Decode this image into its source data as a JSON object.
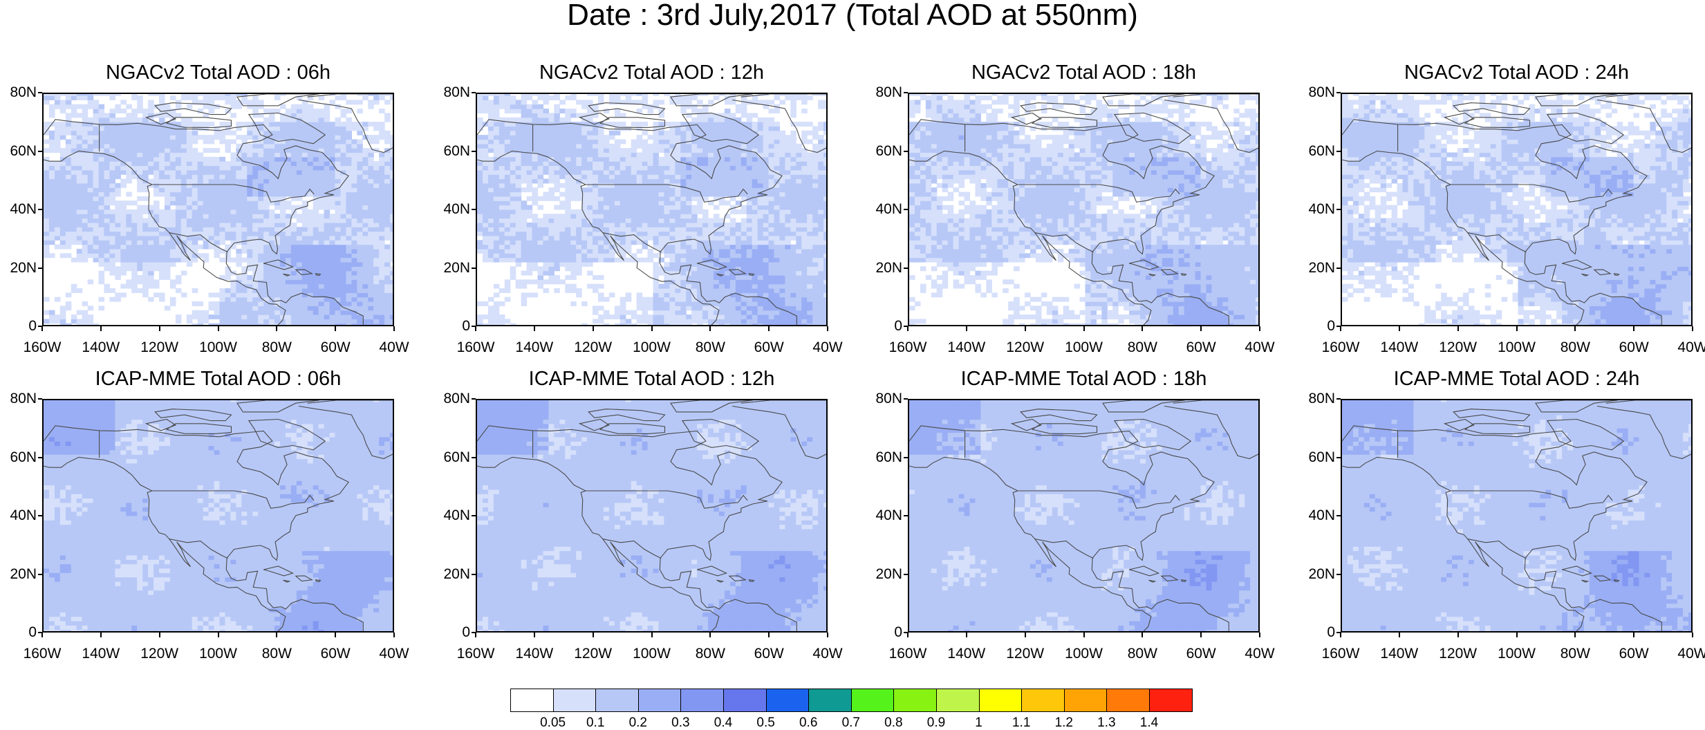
{
  "title": "Date : 3rd July,2017 (Total AOD at 550nm)",
  "panels": [
    {
      "title": "NGACv2 Total AOD : 06h"
    },
    {
      "title": "NGACv2 Total AOD : 12h"
    },
    {
      "title": "NGACv2 Total AOD : 18h"
    },
    {
      "title": "NGACv2 Total AOD : 24h"
    },
    {
      "title": "ICAP-MME Total AOD : 06h"
    },
    {
      "title": "ICAP-MME Total AOD : 12h"
    },
    {
      "title": "ICAP-MME Total AOD : 18h"
    },
    {
      "title": "ICAP-MME Total AOD : 24h"
    }
  ],
  "lat_ticks": [
    "80N",
    "60N",
    "40N",
    "20N",
    "0"
  ],
  "lon_ticks": [
    "160W",
    "140W",
    "120W",
    "100W",
    "80W",
    "60W",
    "40W"
  ],
  "colorbar": {
    "labels": [
      "0.05",
      "0.1",
      "0.2",
      "0.3",
      "0.4",
      "0.5",
      "0.6",
      "0.7",
      "0.8",
      "0.9",
      "1",
      "1.1",
      "1.2",
      "1.3",
      "1.4"
    ],
    "colors": [
      "#ffffff",
      "#d6e0fb",
      "#b7c8f7",
      "#99aef4",
      "#8297f2",
      "#6677ee",
      "#1b63ef",
      "#0f9a93",
      "#55f21b",
      "#88f212",
      "#bff54a",
      "#ffff00",
      "#ffc70a",
      "#ffa404",
      "#ff7a09",
      "#ff2110"
    ]
  },
  "colors": {
    "background": "#ffffff",
    "coastline": "#4a4a4a",
    "border": "#000000"
  }
}
